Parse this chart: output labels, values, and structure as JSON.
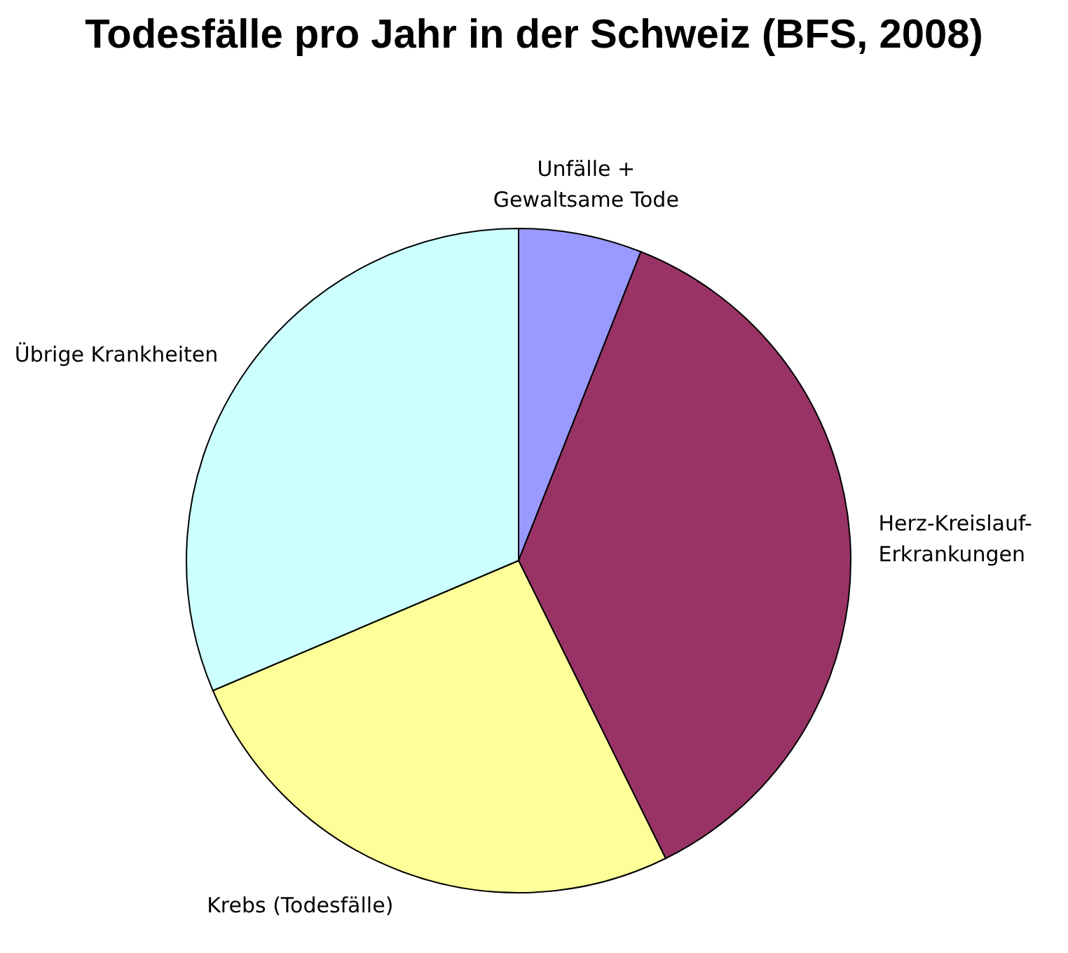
{
  "chart_data": {
    "type": "pie",
    "title": "Todesfälle pro Jahr in der Schweiz (BFS, 2008)",
    "categories": [
      "Unfälle +\nGewaltsame Tode",
      "Herz-Kreislauf-\nErkrankungen",
      "Krebs (Todesfälle)",
      "Übrige Krankheiten"
    ],
    "values": [
      6.0,
      36.7,
      25.9,
      31.4
    ],
    "colors": [
      "#9999ff",
      "#993366",
      "#ffff99",
      "#ccffff"
    ]
  }
}
